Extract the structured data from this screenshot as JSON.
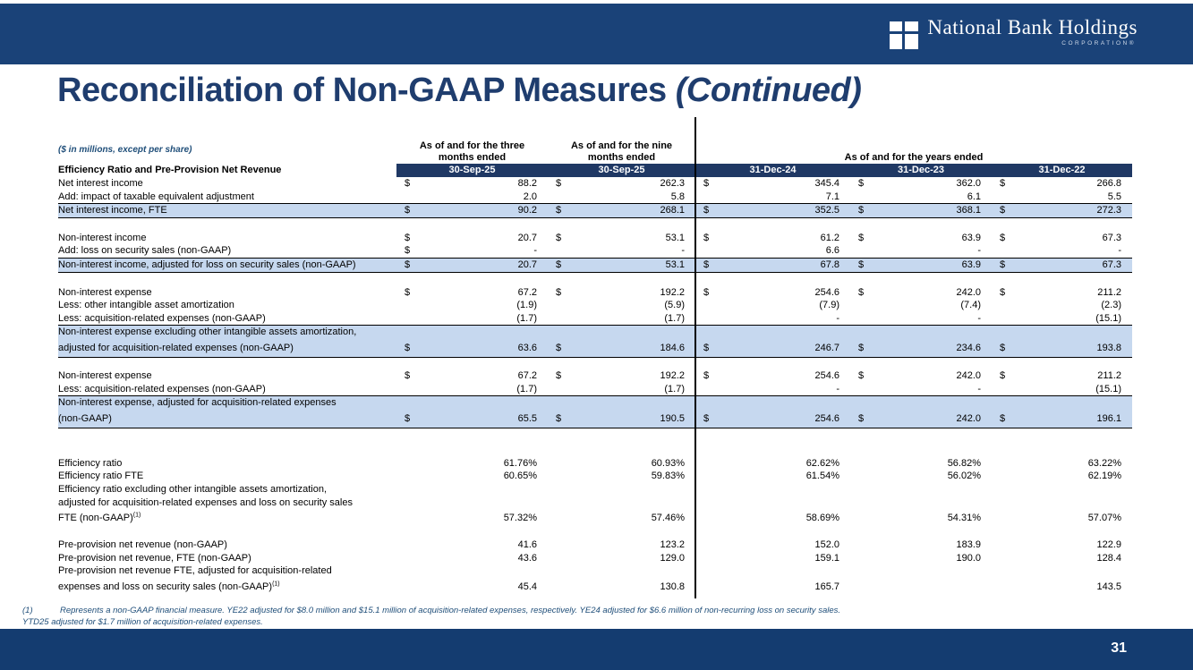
{
  "logo": {
    "name": "National Bank Holdings",
    "sub": "CORPORATION®"
  },
  "title": {
    "main": "Reconciliation of Non-GAAP Measures ",
    "continued": "(Continued)"
  },
  "page_number": "31",
  "colors": {
    "banner": "#1a4278",
    "bottom_bar": "#143c70",
    "table_header": "#1f3864",
    "highlight": "#c6d8ef",
    "title_text": "#1f3d6e",
    "footnote_text": "#1f4e79"
  },
  "table": {
    "hint": "($ in millions, except per share)",
    "section_label": "Efficiency Ratio and Pre-Provision Net Revenue",
    "col1_line1": "As of and for the three",
    "col1_line2": "months ended",
    "col2_line1": "As of and for the nine",
    "col2_line2": "months ended",
    "years_header": "As of and for the years ended",
    "dates": [
      "30-Sep-25",
      "30-Sep-25",
      "31-Dec-24",
      "31-Dec-23",
      "31-Dec-22"
    ],
    "rows": [
      {
        "label": "Net interest income",
        "cells": [
          {
            "d": "$",
            "v": "88.2"
          },
          {
            "d": "$",
            "v": "262.3"
          },
          {
            "d": "$",
            "v": "345.4"
          },
          {
            "d": "$",
            "v": "362.0"
          },
          {
            "d": "$",
            "v": "266.8"
          }
        ]
      },
      {
        "label": "Add: impact of taxable equivalent adjustment",
        "cells": [
          {
            "d": "",
            "v": "2.0"
          },
          {
            "d": "",
            "v": "5.8"
          },
          {
            "d": "",
            "v": "7.1"
          },
          {
            "d": "",
            "v": "6.1"
          },
          {
            "d": "",
            "v": "5.5"
          }
        ]
      },
      {
        "label": "Net interest income, FTE",
        "hl": true,
        "bt": true,
        "bb": true,
        "cells": [
          {
            "d": "$",
            "v": "90.2"
          },
          {
            "d": "$",
            "v": "268.1"
          },
          {
            "d": "$",
            "v": "352.5"
          },
          {
            "d": "$",
            "v": "368.1"
          },
          {
            "d": "$",
            "v": "272.3"
          }
        ]
      },
      {
        "spacer": "sm"
      },
      {
        "label": "Non-interest income",
        "cells": [
          {
            "d": "$",
            "v": "20.7"
          },
          {
            "d": "$",
            "v": "53.1"
          },
          {
            "d": "$",
            "v": "61.2"
          },
          {
            "d": "$",
            "v": "63.9"
          },
          {
            "d": "$",
            "v": "67.3"
          }
        ]
      },
      {
        "label": "Add: loss on security sales (non-GAAP)",
        "cells": [
          {
            "d": "$",
            "v": "-"
          },
          {
            "d": "",
            "v": "-"
          },
          {
            "d": "",
            "v": "6.6"
          },
          {
            "d": "",
            "v": "-"
          },
          {
            "d": "",
            "v": "-"
          }
        ]
      },
      {
        "label": "Non-interest income, adjusted for loss on security sales (non-GAAP)",
        "hl": true,
        "bt": true,
        "bb": true,
        "cells": [
          {
            "d": "$",
            "v": "20.7"
          },
          {
            "d": "$",
            "v": "53.1"
          },
          {
            "d": "$",
            "v": "67.8"
          },
          {
            "d": "$",
            "v": "63.9"
          },
          {
            "d": "$",
            "v": "67.3"
          }
        ]
      },
      {
        "spacer": "sm"
      },
      {
        "label": "Non-interest expense",
        "cells": [
          {
            "d": "$",
            "v": "67.2"
          },
          {
            "d": "$",
            "v": "192.2"
          },
          {
            "d": "$",
            "v": "254.6"
          },
          {
            "d": "$",
            "v": "242.0"
          },
          {
            "d": "$",
            "v": "211.2"
          }
        ]
      },
      {
        "label": "Less: other intangible asset amortization",
        "cells": [
          {
            "d": "",
            "v": "(1.9)"
          },
          {
            "d": "",
            "v": "(5.9)"
          },
          {
            "d": "",
            "v": "(7.9)"
          },
          {
            "d": "",
            "v": "(7.4)"
          },
          {
            "d": "",
            "v": "(2.3)"
          }
        ]
      },
      {
        "label": "Less: acquisition-related expenses (non-GAAP)",
        "cells": [
          {
            "d": "",
            "v": "(1.7)"
          },
          {
            "d": "",
            "v": "(1.7)"
          },
          {
            "d": "",
            "v": "-"
          },
          {
            "d": "",
            "v": "-"
          },
          {
            "d": "",
            "v": "(15.1)"
          }
        ]
      },
      {
        "label": "Non-interest expense excluding other intangible assets amortization,",
        "hl": true,
        "bt": true
      },
      {
        "label": "adjusted for acquisition-related expenses (non-GAAP)",
        "hl": true,
        "bb": true,
        "tall": true,
        "cells": [
          {
            "d": "$",
            "v": "63.6"
          },
          {
            "d": "$",
            "v": "184.6"
          },
          {
            "d": "$",
            "v": "246.7"
          },
          {
            "d": "$",
            "v": "234.6"
          },
          {
            "d": "$",
            "v": "193.8"
          }
        ]
      },
      {
        "spacer": "md"
      },
      {
        "label": "Non-interest expense",
        "cells": [
          {
            "d": "$",
            "v": "67.2"
          },
          {
            "d": "$",
            "v": "192.2"
          },
          {
            "d": "$",
            "v": "254.6"
          },
          {
            "d": "$",
            "v": "242.0"
          },
          {
            "d": "$",
            "v": "211.2"
          }
        ]
      },
      {
        "label": "Less: acquisition-related expenses (non-GAAP)",
        "cells": [
          {
            "d": "",
            "v": "(1.7)"
          },
          {
            "d": "",
            "v": "(1.7)"
          },
          {
            "d": "",
            "v": "-"
          },
          {
            "d": "",
            "v": "-"
          },
          {
            "d": "",
            "v": "(15.1)"
          }
        ]
      },
      {
        "label": "Non-interest expense, adjusted for acquisition-related expenses",
        "hl": true,
        "bt": true
      },
      {
        "label": "(non-GAAP)",
        "hl": true,
        "bb": true,
        "tall": true,
        "cells": [
          {
            "d": "$",
            "v": "65.5"
          },
          {
            "d": "$",
            "v": "190.5"
          },
          {
            "d": "$",
            "v": "254.6"
          },
          {
            "d": "$",
            "v": "242.0"
          },
          {
            "d": "$",
            "v": "196.1"
          }
        ]
      },
      {
        "spacer": "lg"
      },
      {
        "label": "Efficiency ratio",
        "cells": [
          {
            "d": "",
            "v": "61.76%"
          },
          {
            "d": "",
            "v": "60.93%"
          },
          {
            "d": "",
            "v": "62.62%"
          },
          {
            "d": "",
            "v": "56.82%"
          },
          {
            "d": "",
            "v": "63.22%"
          }
        ]
      },
      {
        "label": "Efficiency ratio FTE",
        "cells": [
          {
            "d": "",
            "v": "60.65%"
          },
          {
            "d": "",
            "v": "59.83%"
          },
          {
            "d": "",
            "v": "61.54%"
          },
          {
            "d": "",
            "v": "56.02%"
          },
          {
            "d": "",
            "v": "62.19%"
          }
        ]
      },
      {
        "label": "Efficiency ratio excluding other intangible assets amortization,"
      },
      {
        "label": "adjusted for acquisition-related expenses and loss on security sales"
      },
      {
        "label": "FTE (non-GAAP)",
        "sup": "(1)",
        "tall": true,
        "cells": [
          {
            "d": "",
            "v": "57.32%"
          },
          {
            "d": "",
            "v": "57.46%"
          },
          {
            "d": "",
            "v": "58.69%"
          },
          {
            "d": "",
            "v": "54.31%"
          },
          {
            "d": "",
            "v": "57.07%"
          }
        ]
      },
      {
        "spacer": "md"
      },
      {
        "label": "Pre-provision net revenue (non-GAAP)",
        "cells": [
          {
            "d": "",
            "v": "41.6"
          },
          {
            "d": "",
            "v": "123.2"
          },
          {
            "d": "",
            "v": "152.0"
          },
          {
            "d": "",
            "v": "183.9"
          },
          {
            "d": "",
            "v": "122.9"
          }
        ]
      },
      {
        "label": "Pre-provision net revenue, FTE (non-GAAP)",
        "cells": [
          {
            "d": "",
            "v": "43.6"
          },
          {
            "d": "",
            "v": "129.0"
          },
          {
            "d": "",
            "v": "159.1"
          },
          {
            "d": "",
            "v": "190.0"
          },
          {
            "d": "",
            "v": "128.4"
          }
        ]
      },
      {
        "label": "Pre-provision net revenue FTE, adjusted for acquisition-related"
      },
      {
        "label": "expenses and loss on security sales (non-GAAP)",
        "sup": "(1)",
        "tall": true,
        "cells": [
          {
            "d": "",
            "v": "45.4"
          },
          {
            "d": "",
            "v": "130.8"
          },
          {
            "d": "",
            "v": "165.7"
          },
          {
            "d": "",
            "v": ""
          },
          {
            "d": "",
            "v": "143.5"
          }
        ]
      }
    ]
  },
  "footnotes": {
    "marker": "(1)",
    "line1": "Represents a non-GAAP financial measure. YE22 adjusted for $8.0 million and $15.1 million of acquisition-related expenses, respectively. YE24 adjusted for $6.6 million of non-recurring loss on security sales.",
    "line2": "YTD25 adjusted for $1.7 million of acquisition-related expenses."
  }
}
